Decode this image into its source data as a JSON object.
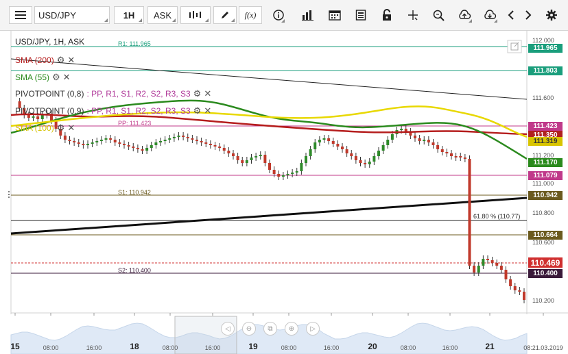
{
  "toolbar": {
    "symbol": "USD/JPY",
    "timeframe": "1H",
    "price_type": "ASK",
    "icons": [
      "menu-icon",
      "candles-icon",
      "pencil-icon",
      "fx-icon",
      "info-icon",
      "bar-chart-icon",
      "calendar-icon",
      "document-icon",
      "lock-icon",
      "crosshair-icon",
      "zoom-icon",
      "cloud-upload-icon",
      "cloud-download-icon",
      "chevron-left-icon",
      "chevron-right-icon",
      "gear-icon"
    ],
    "fx_label": "f(x)"
  },
  "chart": {
    "title": "USD/JPY, 1H, ASK",
    "indicators": {
      "sma200": "SMA (200)",
      "sma55": "SMA (55)",
      "pivot1_name": "PIVOTPOINT (0,8)",
      "pivot1_tail": ": PP, R1, S1, R2, S2, R3, S3",
      "pivot2_name": "PIVOTPOINT (0,9)",
      "pivot2_tail": ": PP, R1, S1, R2, S2, R3, S3",
      "sma100": "SMA (100)"
    },
    "levels": {
      "r1": "R1: 111.965",
      "pp": "PP: 111.423",
      "s1": "S1: 110.942",
      "s2": "S2: 110.400",
      "fib": "61.80 % (110.77)"
    },
    "price_labels": [
      {
        "value": "111.965",
        "color": "#1a9e7c"
      },
      {
        "value": "111.803",
        "color": "#1a9e7c"
      },
      {
        "value": "111.423",
        "color": "#c0398a"
      },
      {
        "value": "111.350",
        "color": "#b02020"
      },
      {
        "value": "111.319",
        "color": "#d8c400"
      },
      {
        "value": "111.170",
        "color": "#2a8a1c"
      },
      {
        "value": "111.079",
        "color": "#c0398a"
      },
      {
        "value": "110.942",
        "color": "#6b5a1e"
      },
      {
        "value": "110.664",
        "color": "#6b5a1e"
      },
      {
        "value": "110.469",
        "color": "#d03030"
      },
      {
        "value": "110.400",
        "color": "#3a1a3a"
      }
    ],
    "y_axis": [
      "112.000",
      "111.600",
      "111.200",
      "111.000",
      "110.800",
      "110.600",
      "110.200"
    ],
    "x_axis": [
      {
        "label": "15",
        "big": true
      },
      {
        "label": "08:00",
        "big": false
      },
      {
        "label": "16:00",
        "big": false
      },
      {
        "label": "18",
        "big": true
      },
      {
        "label": "08:00",
        "big": false
      },
      {
        "label": "16:00",
        "big": false
      },
      {
        "label": "19",
        "big": true
      },
      {
        "label": "08:00",
        "big": false
      },
      {
        "label": "16:00",
        "big": false
      },
      {
        "label": "20",
        "big": true
      },
      {
        "label": "08:00",
        "big": false
      },
      {
        "label": "16:00",
        "big": false
      },
      {
        "label": "21",
        "big": true
      },
      {
        "label": "08:21.03.2019",
        "big": false
      }
    ],
    "nav_icons": [
      "chevron-left-icon",
      "zoom-out-icon",
      "fit-icon",
      "zoom-in-icon",
      "chevron-right-icon"
    ]
  },
  "colors": {
    "sma200": "#b51d1d",
    "sma55": "#2b8a1e",
    "sma100": "#e8d800",
    "pivot1": "#333333",
    "bull": "#2e8a2a",
    "bear": "#c0392b"
  }
}
